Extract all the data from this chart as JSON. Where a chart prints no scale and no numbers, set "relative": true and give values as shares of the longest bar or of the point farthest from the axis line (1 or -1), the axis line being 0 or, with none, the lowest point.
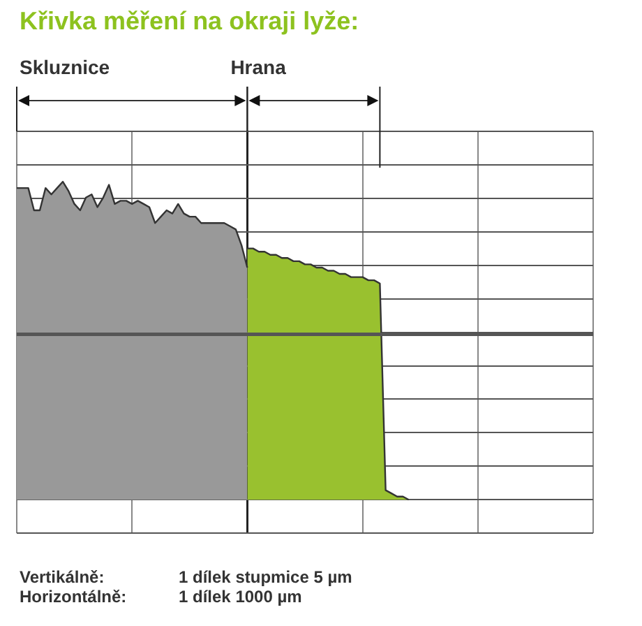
{
  "chart_data": {
    "type": "area",
    "title": "Křivka měření na okraji lyže:",
    "relative": true,
    "grid": true,
    "legend": false,
    "categories": [
      null,
      null,
      null,
      null,
      null,
      null,
      null,
      null,
      null,
      null,
      null,
      null,
      null,
      null,
      null,
      null,
      null,
      null,
      null,
      null,
      null,
      null,
      null,
      null,
      null,
      null,
      null,
      null,
      null,
      null,
      null,
      null,
      null,
      null,
      null,
      null,
      null,
      null,
      null,
      null,
      null,
      null,
      null,
      null,
      null,
      null,
      null,
      null,
      null,
      null,
      null,
      null,
      null,
      null,
      null,
      null,
      null,
      null,
      null,
      null,
      null,
      null,
      null,
      null,
      null,
      null,
      null,
      null,
      null,
      null,
      null,
      null,
      null,
      null,
      null,
      null,
      null,
      null,
      null,
      null,
      null,
      null,
      null,
      null,
      null,
      null,
      null,
      null,
      null,
      null,
      null,
      null,
      null,
      null,
      null,
      null,
      null,
      null,
      null,
      null,
      null
    ],
    "series": [
      {
        "color": "#999999",
        "values": [
          0.98,
          0.98,
          0.98,
          0.91,
          0.91,
          0.98,
          0.96,
          0.98,
          1,
          0.97,
          0.93,
          0.91,
          0.95,
          0.96,
          0.92,
          0.95,
          0.99,
          0.93,
          0.94,
          0.94,
          0.93,
          0.94,
          0.93,
          0.92,
          0.87,
          0.89,
          0.91,
          0.9,
          0.93,
          0.9,
          0.89,
          0.89,
          0.87,
          0.87,
          0.87,
          0.87,
          0.87,
          0.86,
          0.85,
          0.8,
          0.73,
          null,
          null,
          null,
          null,
          null,
          null,
          null,
          null,
          null,
          null,
          null,
          null,
          null,
          null,
          null,
          null,
          null,
          null,
          null,
          null,
          null,
          null,
          null,
          null,
          null,
          null,
          null,
          null,
          null,
          null,
          null,
          null,
          null,
          null,
          null,
          null,
          null,
          null,
          null,
          null,
          null,
          null,
          null,
          null,
          null,
          null,
          null,
          null,
          null,
          null,
          null,
          null,
          null,
          null,
          null,
          null,
          null,
          null,
          null,
          null
        ]
      },
      {
        "color": "#99c12f",
        "values": [
          null,
          null,
          null,
          null,
          null,
          null,
          null,
          null,
          null,
          null,
          null,
          null,
          null,
          null,
          null,
          null,
          null,
          null,
          null,
          null,
          null,
          null,
          null,
          null,
          null,
          null,
          null,
          null,
          null,
          null,
          null,
          null,
          null,
          null,
          null,
          null,
          null,
          null,
          null,
          null,
          0.79,
          0.79,
          0.78,
          0.78,
          0.77,
          0.77,
          0.76,
          0.76,
          0.75,
          0.75,
          0.74,
          0.74,
          0.73,
          0.73,
          0.72,
          0.72,
          0.71,
          0.71,
          0.7,
          0.7,
          0.7,
          0.69,
          0.69,
          0.68,
          0.03,
          0.02,
          0.01,
          0.01,
          0,
          null,
          null,
          null,
          null,
          null,
          null,
          null,
          null,
          null,
          null,
          null,
          null,
          null,
          null,
          null,
          null,
          null,
          null,
          null,
          null,
          null,
          null,
          null,
          null,
          null,
          null,
          null,
          null,
          null,
          null,
          null,
          null
        ]
      }
    ],
    "ref_lines": [
      {
        "axis": "y",
        "value": 0.52,
        "color": "#555555"
      }
    ],
    "annotations": [
      "Skluznice",
      "Hrana",
      "Vertikálně:",
      "1 dílek stupmice 5 µm",
      "Horizontálně:",
      "1 dílek 1000 µm"
    ]
  }
}
